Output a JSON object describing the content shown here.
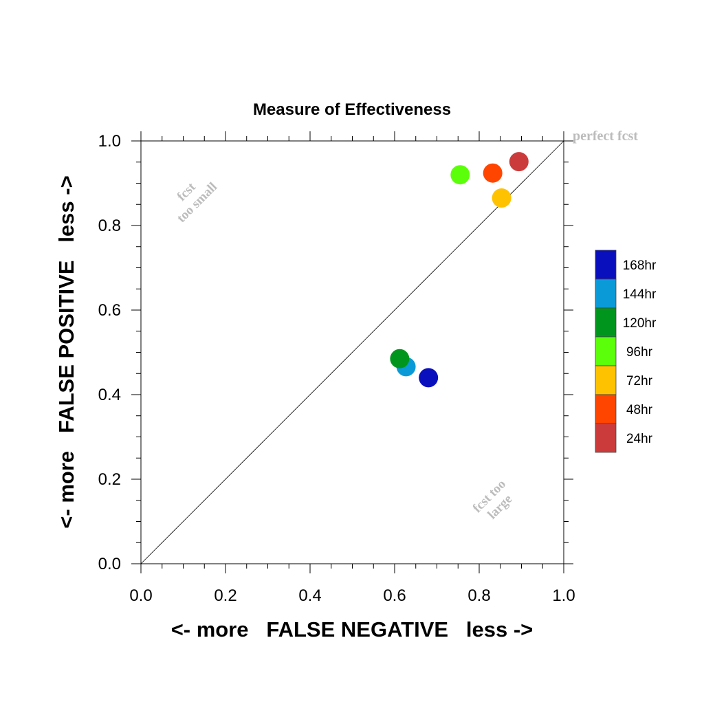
{
  "chart_data": {
    "type": "scatter",
    "title": "Measure of Effectiveness",
    "xlabel": "<- more   FALSE NEGATIVE   less ->",
    "ylabel": "<- more   FALSE POSITIVE   less ->",
    "xlim": [
      0.0,
      1.0
    ],
    "ylim": [
      0.0,
      1.0
    ],
    "xticks": [
      "0.0",
      "0.2",
      "0.4",
      "0.6",
      "0.8",
      "1.0"
    ],
    "yticks": [
      "0.0",
      "0.2",
      "0.4",
      "0.6",
      "0.8",
      "1.0"
    ],
    "grid": false,
    "diagonal_reference_line": true,
    "annotations": {
      "perfect": "perfect fcst",
      "too_small_line1": "fcst",
      "too_small_line2": "too small",
      "too_large_line1": "fcst too",
      "too_large_line2": "large"
    },
    "legend_position": "right",
    "series": [
      {
        "name": "168hr",
        "x": 0.68,
        "y": 0.44,
        "color": "#0a0fbe"
      },
      {
        "name": "144hr",
        "x": 0.627,
        "y": 0.466,
        "color": "#0b9ad8"
      },
      {
        "name": "120hr",
        "x": 0.612,
        "y": 0.485,
        "color": "#00961e"
      },
      {
        "name": "96hr",
        "x": 0.755,
        "y": 0.92,
        "color": "#5cff0a"
      },
      {
        "name": "72hr",
        "x": 0.853,
        "y": 0.865,
        "color": "#ffc200"
      },
      {
        "name": "48hr",
        "x": 0.832,
        "y": 0.924,
        "color": "#ff4500"
      },
      {
        "name": "24hr",
        "x": 0.894,
        "y": 0.951,
        "color": "#cc3b3b"
      }
    ]
  }
}
